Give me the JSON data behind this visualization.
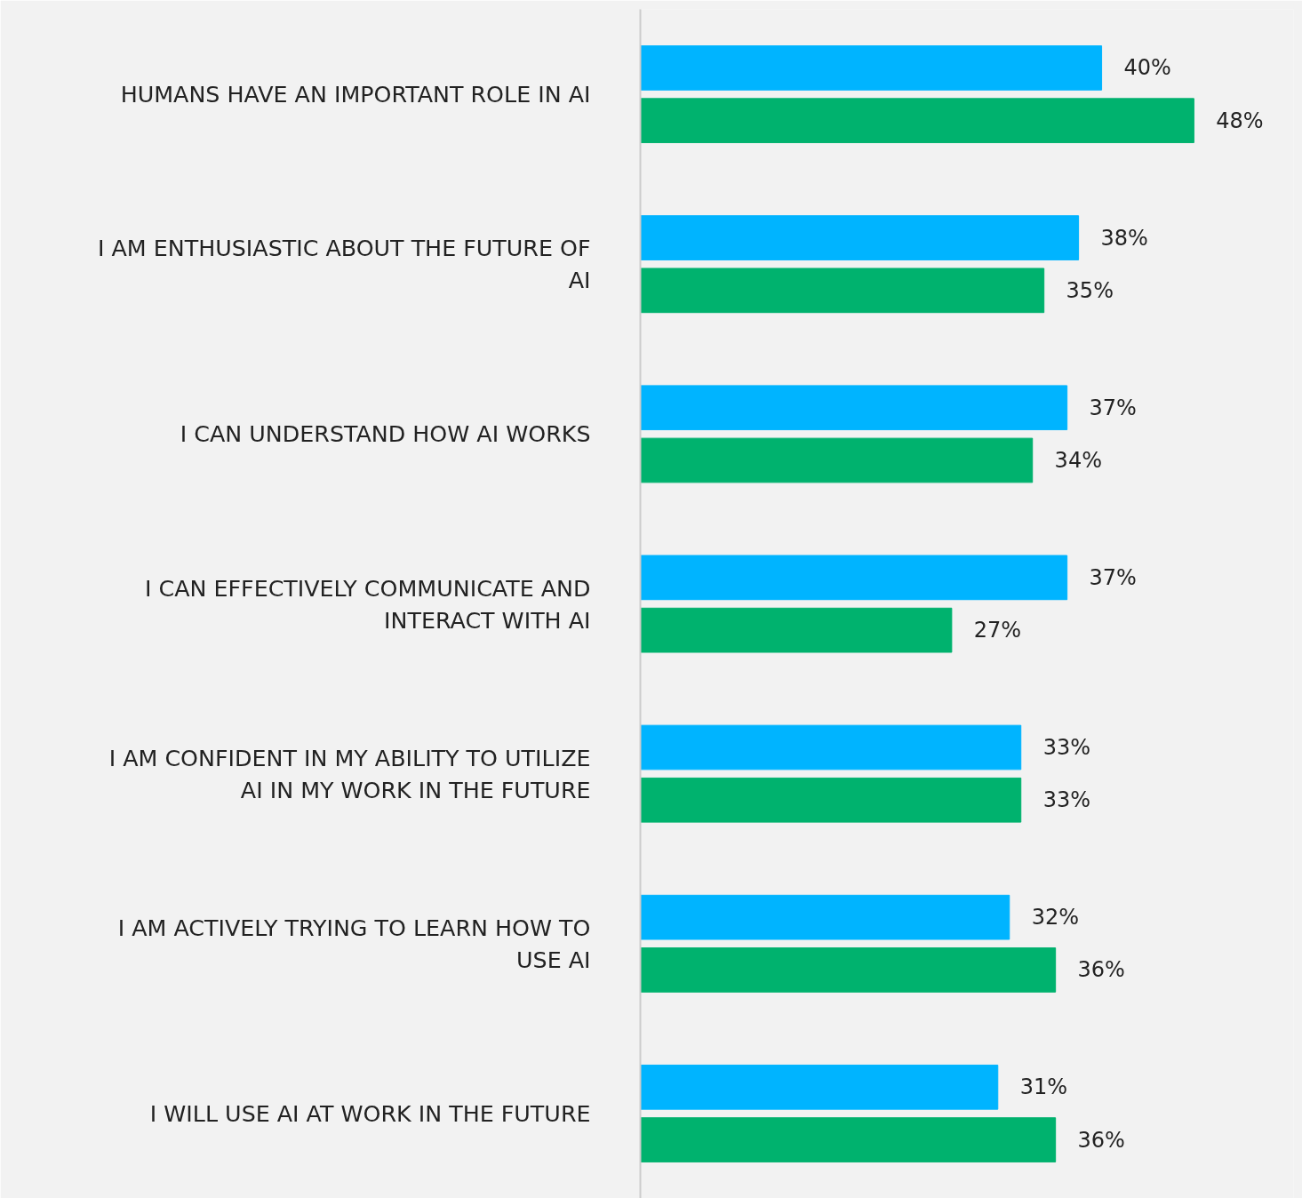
{
  "chart_data": {
    "type": "bar",
    "orientation": "horizontal",
    "categories": [
      "HUMANS HAVE AN IMPORTANT ROLE IN AI",
      "I AM ENTHUSIASTIC ABOUT THE FUTURE OF AI",
      "I CAN UNDERSTAND HOW AI WORKS",
      "I CAN EFFECTIVELY COMMUNICATE AND INTERACT WITH AI",
      "I AM CONFIDENT IN MY ABILITY TO UTILIZE AI IN MY WORK IN THE FUTURE",
      "I AM ACTIVELY TRYING TO LEARN HOW TO USE AI",
      "I WILL USE AI AT WORK IN THE FUTURE"
    ],
    "series": [
      {
        "color": "#00b4ff",
        "values": [
          40,
          38,
          37,
          37,
          33,
          32,
          31
        ],
        "value_labels": [
          "40%",
          "38%",
          "37%",
          "37%",
          "33%",
          "32%",
          "31%"
        ]
      },
      {
        "color": "#00b26e",
        "values": [
          48,
          35,
          34,
          27,
          33,
          36,
          36
        ],
        "value_labels": [
          "48%",
          "35%",
          "34%",
          "27%",
          "33%",
          "36%",
          "36%"
        ]
      }
    ],
    "grid": false
  }
}
